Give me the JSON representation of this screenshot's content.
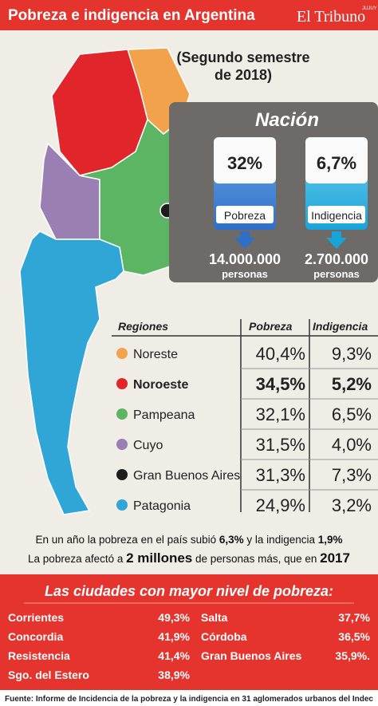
{
  "header": {
    "title": "Pobreza e indigencia en Argentina",
    "logo": "El Tribuno",
    "logo_tag": "JUJUY"
  },
  "subtitle": [
    "(Segundo semestre",
    "de 2018)"
  ],
  "nation": {
    "title": "Nación",
    "cards": [
      {
        "value": "32%",
        "label": "Pobreza",
        "people": "14.000.000",
        "unit": "personas"
      },
      {
        "value": "6,7%",
        "label": "Indigencia",
        "people": "2.700.000",
        "unit": "personas"
      }
    ]
  },
  "table": {
    "headers": [
      "Regiones",
      "Pobreza",
      "Indigencia"
    ],
    "rows": [
      {
        "region": "Noreste",
        "color": "#f2a24a",
        "pobreza": "40,4%",
        "indigencia": "9,3%"
      },
      {
        "region": "Noroeste",
        "color": "#e0262b",
        "pobreza": "34,5%",
        "indigencia": "5,2%",
        "bold": true
      },
      {
        "region": "Pampeana",
        "color": "#5cb562",
        "pobreza": "32,1%",
        "indigencia": "6,5%"
      },
      {
        "region": "Cuyo",
        "color": "#9a7fb3",
        "pobreza": "31,5%",
        "indigencia": "4,0%"
      },
      {
        "region": "Gran Buenos Aires",
        "color": "#1d1d1d",
        "pobreza": "31,3%",
        "indigencia": "7,3%"
      },
      {
        "region": "Patagonia",
        "color": "#2fa6d6",
        "pobreza": "24,9%",
        "indigencia": "3,2%"
      }
    ]
  },
  "statements": [
    [
      {
        "text": "En un año la pobreza en el país subió "
      },
      {
        "text": "6,3%",
        "bold": true
      },
      {
        "text": " y la indigencia "
      },
      {
        "text": "1,9%",
        "bold": true
      }
    ],
    [
      {
        "text": "La pobreza afectó a "
      },
      {
        "text": "2 millones",
        "bold": true,
        "big": true
      },
      {
        "text": " de personas más, que en "
      },
      {
        "text": "2017",
        "bold": true,
        "big": true
      }
    ]
  ],
  "cities": {
    "title": "Las ciudades con mayor nivel de pobreza:",
    "columns": [
      [
        {
          "name": "Corrientes",
          "value": "49,3%"
        },
        {
          "name": "Concordia",
          "value": "41,9%"
        },
        {
          "name": "Resistencia",
          "value": "41,4%"
        },
        {
          "name": "Sgo. del Estero",
          "value": "38,9%"
        }
      ],
      [
        {
          "name": "Salta",
          "value": "37,7%"
        },
        {
          "name": "Córdoba",
          "value": "36,5%"
        },
        {
          "name": "Gran Buenos Aires",
          "value": "35,9%."
        }
      ]
    ]
  },
  "source": "Fuente: Informe de Incidencia de la pobreza y la indigencia en 31 aglomerados urbanos del Indec"
}
